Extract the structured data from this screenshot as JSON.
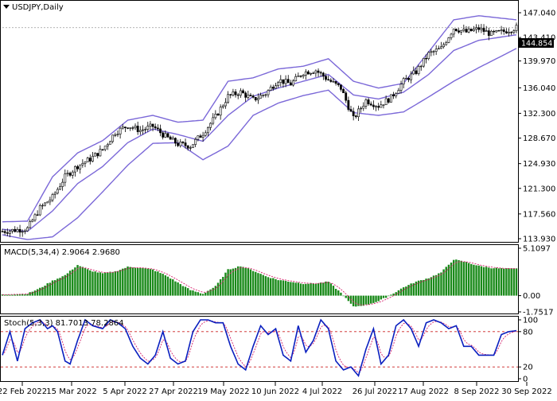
{
  "header": {
    "symbol_title": "USDJPY,Daily"
  },
  "price_panel": {
    "current_price": "144.854",
    "y_ticks": [
      "147.040",
      "143.410",
      "139.970",
      "136.040",
      "132.300",
      "128.670",
      "124.930",
      "121.300",
      "117.560",
      "113.930"
    ]
  },
  "macd_panel": {
    "title": "MACD(5,34,4) 2.9064 2.9680",
    "y_ticks": [
      "5.1097",
      "0.00",
      "-1.7517"
    ]
  },
  "stoch_panel": {
    "title": "Stoch(5,3,3) 81.7013 78.2864",
    "y_ticks": [
      "100",
      "80",
      "20",
      "0"
    ]
  },
  "x_ticks": [
    "22 Feb 2022",
    "15 Mar 2022",
    "5 Apr 2022",
    "27 Apr 2022",
    "19 May 2022",
    "10 Jun 2022",
    "4 Jul 2022",
    "26 Jul 2022",
    "17 Aug 2022",
    "8 Sep 2022",
    "30 Sep 2022"
  ],
  "colors": {
    "candle_up": "#000000",
    "candle_down": "#000000",
    "bollinger": "#7b68d8",
    "macd_hist": "#1a8a1a",
    "macd_signal": "#d4206a",
    "stoch_main": "#0a1fbf",
    "stoch_signal": "#d4206a",
    "level_line": "#cc2020"
  },
  "chart_data": [
    {
      "type": "candlestick",
      "title": "USDJPY,Daily",
      "indicator": "Bollinger Bands",
      "ylim": [
        113.93,
        147.04
      ],
      "y_ticks": [
        147.04,
        143.41,
        139.97,
        136.04,
        132.3,
        128.67,
        124.93,
        121.3,
        117.56,
        113.93
      ],
      "x_ticks": [
        "22 Feb 2022",
        "15 Mar 2022",
        "5 Apr 2022",
        "27 Apr 2022",
        "19 May 2022",
        "10 Jun 2022",
        "4 Jul 2022",
        "26 Jul 2022",
        "17 Aug 2022",
        "8 Sep 2022",
        "30 Sep 2022"
      ],
      "last_price": 144.854,
      "close_anchors": [
        [
          0,
          115.0
        ],
        [
          5,
          115.2
        ],
        [
          10,
          115.4
        ],
        [
          15,
          118.4
        ],
        [
          20,
          120.0
        ],
        [
          25,
          123.0
        ],
        [
          30,
          124.6
        ],
        [
          35,
          125.6
        ],
        [
          40,
          127.0
        ],
        [
          45,
          129.5
        ],
        [
          50,
          130.5
        ],
        [
          55,
          129.8
        ],
        [
          60,
          130.4
        ],
        [
          65,
          128.9
        ],
        [
          70,
          127.8
        ],
        [
          75,
          127.5
        ],
        [
          80,
          129.4
        ],
        [
          85,
          131.8
        ],
        [
          90,
          134.8
        ],
        [
          95,
          135.4
        ],
        [
          100,
          134.3
        ],
        [
          105,
          135.2
        ],
        [
          110,
          137.2
        ],
        [
          115,
          136.6
        ],
        [
          120,
          138.3
        ],
        [
          125,
          138.6
        ],
        [
          130,
          137.2
        ],
        [
          135,
          136.0
        ],
        [
          140,
          131.5
        ],
        [
          145,
          134.2
        ],
        [
          150,
          133.4
        ],
        [
          155,
          134.6
        ],
        [
          160,
          137.0
        ],
        [
          165,
          138.4
        ],
        [
          170,
          141.0
        ],
        [
          175,
          141.8
        ],
        [
          180,
          144.8
        ],
        [
          185,
          144.2
        ],
        [
          190,
          144.7
        ],
        [
          195,
          143.9
        ],
        [
          200,
          144.3
        ],
        [
          205,
          144.854
        ]
      ],
      "bands": {
        "upper_anchors": [
          [
            0,
            116.4
          ],
          [
            10,
            116.5
          ],
          [
            20,
            123.0
          ],
          [
            30,
            126.5
          ],
          [
            40,
            128.3
          ],
          [
            50,
            131.3
          ],
          [
            60,
            132.0
          ],
          [
            70,
            131.0
          ],
          [
            80,
            131.3
          ],
          [
            90,
            137.0
          ],
          [
            100,
            137.5
          ],
          [
            110,
            138.8
          ],
          [
            120,
            139.2
          ],
          [
            130,
            140.3
          ],
          [
            140,
            137.0
          ],
          [
            150,
            136.0
          ],
          [
            160,
            136.7
          ],
          [
            170,
            141.3
          ],
          [
            180,
            146.0
          ],
          [
            190,
            146.6
          ],
          [
            205,
            146.0
          ]
        ],
        "middle_anchors": [
          [
            0,
            115.3
          ],
          [
            10,
            115.0
          ],
          [
            20,
            118.0
          ],
          [
            30,
            122.0
          ],
          [
            40,
            124.5
          ],
          [
            50,
            128.0
          ],
          [
            60,
            130.0
          ],
          [
            70,
            129.2
          ],
          [
            80,
            128.2
          ],
          [
            90,
            132.0
          ],
          [
            100,
            134.8
          ],
          [
            110,
            136.0
          ],
          [
            120,
            137.0
          ],
          [
            130,
            138.0
          ],
          [
            140,
            135.0
          ],
          [
            150,
            134.4
          ],
          [
            160,
            135.4
          ],
          [
            170,
            138.0
          ],
          [
            180,
            141.5
          ],
          [
            190,
            143.0
          ],
          [
            205,
            143.8
          ]
        ],
        "lower_anchors": [
          [
            0,
            114.5
          ],
          [
            10,
            113.8
          ],
          [
            20,
            114.2
          ],
          [
            30,
            117.0
          ],
          [
            40,
            120.8
          ],
          [
            50,
            124.7
          ],
          [
            60,
            127.9
          ],
          [
            70,
            128.0
          ],
          [
            80,
            125.5
          ],
          [
            90,
            127.5
          ],
          [
            100,
            132.0
          ],
          [
            110,
            133.8
          ],
          [
            120,
            134.9
          ],
          [
            130,
            135.7
          ],
          [
            140,
            132.4
          ],
          [
            150,
            132.0
          ],
          [
            160,
            132.5
          ],
          [
            170,
            134.7
          ],
          [
            180,
            137.0
          ],
          [
            190,
            139.0
          ],
          [
            205,
            141.8
          ]
        ]
      }
    },
    {
      "type": "bar",
      "title": "MACD(5,34,4) 2.9064 2.9680",
      "macd_value": 2.9064,
      "signal_value": 2.968,
      "ylim": [
        -1.7517,
        5.1097
      ],
      "y_ticks": [
        5.1097,
        0.0,
        -1.7517
      ],
      "histogram_anchors": [
        [
          0,
          0.1
        ],
        [
          10,
          0.2
        ],
        [
          15,
          0.8
        ],
        [
          20,
          1.6
        ],
        [
          25,
          2.2
        ],
        [
          30,
          3.3
        ],
        [
          35,
          2.7
        ],
        [
          40,
          2.4
        ],
        [
          45,
          2.6
        ],
        [
          50,
          3.1
        ],
        [
          55,
          3.0
        ],
        [
          60,
          2.8
        ],
        [
          65,
          2.2
        ],
        [
          70,
          1.4
        ],
        [
          75,
          0.6
        ],
        [
          80,
          0.2
        ],
        [
          85,
          1.0
        ],
        [
          90,
          2.8
        ],
        [
          95,
          3.2
        ],
        [
          100,
          2.7
        ],
        [
          105,
          2.1
        ],
        [
          110,
          1.7
        ],
        [
          115,
          1.5
        ],
        [
          120,
          1.3
        ],
        [
          125,
          1.3
        ],
        [
          130,
          1.5
        ],
        [
          135,
          0.3
        ],
        [
          140,
          -1.2
        ],
        [
          145,
          -1.0
        ],
        [
          150,
          -0.6
        ],
        [
          155,
          0.1
        ],
        [
          160,
          0.9
        ],
        [
          165,
          1.5
        ],
        [
          170,
          1.9
        ],
        [
          175,
          2.5
        ],
        [
          180,
          3.9
        ],
        [
          185,
          3.6
        ],
        [
          190,
          3.2
        ],
        [
          195,
          3.0
        ],
        [
          200,
          2.9
        ],
        [
          205,
          2.9064
        ]
      ]
    },
    {
      "type": "line",
      "title": "Stoch(5,3,3) 81.7013 78.2864",
      "main_value": 81.7013,
      "signal_value": 78.2864,
      "ylim": [
        0,
        100
      ],
      "levels": [
        80,
        20
      ],
      "series": [
        {
          "name": "Stoch main",
          "anchors": [
            [
              0,
              40
            ],
            [
              3,
              80
            ],
            [
              6,
              30
            ],
            [
              9,
              85
            ],
            [
              12,
              95
            ],
            [
              15,
              100
            ],
            [
              18,
              85
            ],
            [
              20,
              90
            ],
            [
              22,
              80
            ],
            [
              25,
              30
            ],
            [
              27,
              25
            ],
            [
              30,
              65
            ],
            [
              33,
              100
            ],
            [
              36,
              90
            ],
            [
              40,
              85
            ],
            [
              43,
              100
            ],
            [
              46,
              95
            ],
            [
              49,
              85
            ],
            [
              52,
              55
            ],
            [
              55,
              35
            ],
            [
              58,
              25
            ],
            [
              61,
              40
            ],
            [
              64,
              80
            ],
            [
              67,
              35
            ],
            [
              70,
              25
            ],
            [
              73,
              30
            ],
            [
              76,
              80
            ],
            [
              79,
              100
            ],
            [
              82,
              100
            ],
            [
              85,
              95
            ],
            [
              88,
              95
            ],
            [
              91,
              55
            ],
            [
              94,
              25
            ],
            [
              97,
              15
            ],
            [
              100,
              55
            ],
            [
              103,
              90
            ],
            [
              106,
              75
            ],
            [
              109,
              85
            ],
            [
              112,
              40
            ],
            [
              115,
              30
            ],
            [
              118,
              90
            ],
            [
              121,
              45
            ],
            [
              124,
              65
            ],
            [
              127,
              100
            ],
            [
              130,
              85
            ],
            [
              133,
              30
            ],
            [
              136,
              15
            ],
            [
              139,
              20
            ],
            [
              142,
              5
            ],
            [
              145,
              50
            ],
            [
              148,
              85
            ],
            [
              151,
              25
            ],
            [
              154,
              40
            ],
            [
              157,
              90
            ],
            [
              160,
              100
            ],
            [
              163,
              85
            ],
            [
              166,
              55
            ],
            [
              169,
              95
            ],
            [
              172,
              100
            ],
            [
              175,
              95
            ],
            [
              178,
              85
            ],
            [
              181,
              90
            ],
            [
              184,
              55
            ],
            [
              187,
              55
            ],
            [
              190,
              40
            ],
            [
              193,
              40
            ],
            [
              196,
              40
            ],
            [
              199,
              75
            ],
            [
              202,
              80
            ],
            [
              205,
              81.7013
            ]
          ]
        },
        {
          "name": "Stoch signal",
          "anchors": []
        }
      ]
    }
  ]
}
